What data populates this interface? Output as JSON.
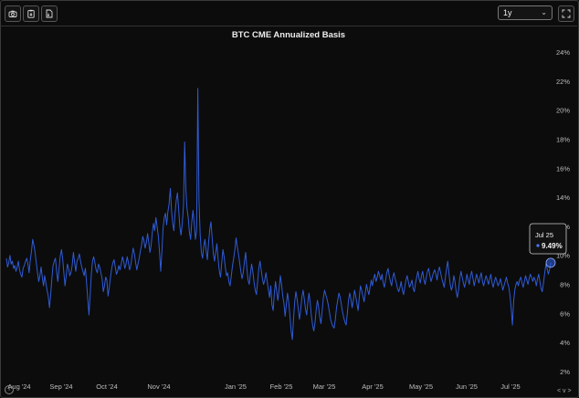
{
  "toolbar": {
    "icons": [
      "camera-icon",
      "clipboard-icon",
      "file-export-icon"
    ],
    "range_label": "1y",
    "fullscreen_icon": "fullscreen-icon"
  },
  "tooltip": {
    "date": "Jul 25",
    "value": "9.49%"
  },
  "footer": {
    "info": "i",
    "nav": "< v >"
  },
  "colors": {
    "background": "#0c0c0c",
    "line": "#2f5bd6",
    "text": "#e6e6e6",
    "axis": "#bdbdbd"
  },
  "chart_data": {
    "type": "line",
    "title": "BTC CME Annualized Basis",
    "xlabel": "",
    "ylabel": "",
    "ylim": [
      2,
      24
    ],
    "y_ticks": [
      "2%",
      "4%",
      "6%",
      "8%",
      "10%",
      "12%",
      "14%",
      "16%",
      "18%",
      "20%",
      "22%",
      "24%"
    ],
    "x_ticks": [
      "Aug '24",
      "Sep '24",
      "Oct '24",
      "Nov '24",
      "Jan '25",
      "Feb '25",
      "Mar '25",
      "Apr '25",
      "May '25",
      "Jun '25",
      "Jul '25"
    ],
    "series": [
      {
        "values": [
          9.8,
          9.2,
          9.5,
          10.0,
          9.4,
          9.6,
          9.1,
          9.3,
          8.9,
          9.2,
          9.6,
          9.0,
          8.7,
          8.5,
          9.1,
          9.3,
          9.6,
          9.8,
          9.4,
          8.8,
          9.7,
          10.3,
          11.1,
          10.7,
          10.2,
          9.5,
          8.8,
          8.2,
          8.6,
          9.2,
          8.5,
          7.9,
          8.6,
          8.1,
          7.6,
          7.2,
          6.4,
          7.3,
          8.4,
          9.3,
          9.6,
          9.8,
          8.9,
          8.2,
          9.0,
          9.9,
          10.4,
          9.8,
          8.8,
          7.9,
          8.6,
          9.4,
          9.1,
          8.6,
          8.8,
          9.3,
          10.2,
          9.5,
          8.9,
          9.6,
          9.8,
          10.1,
          9.6,
          9.2,
          8.9,
          8.6,
          9.1,
          8.1,
          7.0,
          5.9,
          7.2,
          8.7,
          9.6,
          9.9,
          9.5,
          9.0,
          8.8,
          9.4,
          9.2,
          8.8,
          8.4,
          7.5,
          7.9,
          8.5,
          8.3,
          7.2,
          7.8,
          8.5,
          9.1,
          9.5,
          9.7,
          9.2,
          8.7,
          8.9,
          9.3,
          9.0,
          9.4,
          9.9,
          9.6,
          9.1,
          9.4,
          9.9,
          9.5,
          9.0,
          9.3,
          9.9,
          10.5,
          10.1,
          9.5,
          9.0,
          9.4,
          9.8,
          10.3,
          10.7,
          11.3,
          11.0,
          10.5,
          10.9,
          11.5,
          10.9,
          10.2,
          10.7,
          11.6,
          12.2,
          11.7,
          12.6,
          12.0,
          11.3,
          10.2,
          8.9,
          10.3,
          11.9,
          12.6,
          12.9,
          12.1,
          13.0,
          13.5,
          14.6,
          13.1,
          12.2,
          11.7,
          12.9,
          13.8,
          14.3,
          13.2,
          12.0,
          11.4,
          12.2,
          13.4,
          17.8,
          14.6,
          13.2,
          12.6,
          11.6,
          11.1,
          12.3,
          13.1,
          12.2,
          11.1,
          11.7,
          21.5,
          13.8,
          11.4,
          10.2,
          9.8,
          10.6,
          11.1,
          10.3,
          9.7,
          10.9,
          11.8,
          12.3,
          11.2,
          10.1,
          9.6,
          10.2,
          10.8,
          9.7,
          8.9,
          8.5,
          9.5,
          10.4,
          9.9,
          9.2,
          8.6,
          8.8,
          8.2,
          7.9,
          8.6,
          9.3,
          9.8,
          10.4,
          11.2,
          10.6,
          10.1,
          9.5,
          8.9,
          8.4,
          8.8,
          9.6,
          10.2,
          9.1,
          8.3,
          8.0,
          8.7,
          9.4,
          8.9,
          8.2,
          7.6,
          7.3,
          8.2,
          9.1,
          9.6,
          9.0,
          8.4,
          8.0,
          8.3,
          8.8,
          8.2,
          7.6,
          7.1,
          7.9,
          6.6,
          6.2,
          7.4,
          8.2,
          7.5,
          6.9,
          7.7,
          8.6,
          8.0,
          7.2,
          6.7,
          5.8,
          6.6,
          7.4,
          6.8,
          5.9,
          4.8,
          4.2,
          5.6,
          6.8,
          7.5,
          7.0,
          6.3,
          5.6,
          6.2,
          7.1,
          7.6,
          7.0,
          6.3,
          5.9,
          6.8,
          7.4,
          6.7,
          5.8,
          5.2,
          4.8,
          5.4,
          6.3,
          6.9,
          6.4,
          5.7,
          5.3,
          6.2,
          7.1,
          7.6,
          7.3,
          7.0,
          6.6,
          6.1,
          5.6,
          5.3,
          5.1,
          5.0,
          5.6,
          6.4,
          6.9,
          7.4,
          7.1,
          6.6,
          6.1,
          5.7,
          5.4,
          5.2,
          6.0,
          6.9,
          7.4,
          7.0,
          6.4,
          6.9,
          7.6,
          7.2,
          6.7,
          6.2,
          7.1,
          7.9,
          7.6,
          7.2,
          6.8,
          7.4,
          8.0,
          7.6,
          7.3,
          7.8,
          8.3,
          7.9,
          8.4,
          8.7,
          8.2,
          8.5,
          8.9,
          8.6,
          8.3,
          8.7,
          8.1,
          7.8,
          8.3,
          8.8,
          9.1,
          8.6,
          8.2,
          7.9,
          8.5,
          8.8,
          8.4,
          8.1,
          7.7,
          7.5,
          7.8,
          8.2,
          7.6,
          7.3,
          7.8,
          8.3,
          8.6,
          8.2,
          7.8,
          8.0,
          8.3,
          7.7,
          7.5,
          8.1,
          8.5,
          8.9,
          8.4,
          8.1,
          8.6,
          8.9,
          8.3,
          8.0,
          8.5,
          8.9,
          9.1,
          8.6,
          8.2,
          8.5,
          8.8,
          9.0,
          8.7,
          8.3,
          8.9,
          9.2,
          8.8,
          8.4,
          8.1,
          7.8,
          8.5,
          9.1,
          9.6,
          8.7,
          8.0,
          7.6,
          7.9,
          8.6,
          8.2,
          7.5,
          7.1,
          7.6,
          8.4,
          8.9,
          8.5,
          8.1,
          7.8,
          8.2,
          8.7,
          8.3,
          8.0,
          8.6,
          8.9,
          8.4,
          7.9,
          8.3,
          8.7,
          8.4,
          8.1,
          8.5,
          8.8,
          8.2,
          7.9,
          8.3,
          8.6,
          8.3,
          8.0,
          8.4,
          8.7,
          8.1,
          7.8,
          8.2,
          8.5,
          8.2,
          7.9,
          8.1,
          8.4,
          8.0,
          7.6,
          7.9,
          8.2,
          8.5,
          8.1,
          7.8,
          7.2,
          6.3,
          5.2,
          6.8,
          7.6,
          8.0,
          8.2,
          7.9,
          8.3,
          8.5,
          8.1,
          7.8,
          8.2,
          8.6,
          8.3,
          8.0,
          8.4,
          8.7,
          8.5,
          8.2,
          8.5,
          8.3,
          7.9,
          8.4,
          8.7,
          8.2,
          7.7,
          7.5,
          8.1,
          8.8,
          9.4,
          9.1,
          8.7,
          9.0,
          9.49
        ]
      }
    ]
  }
}
